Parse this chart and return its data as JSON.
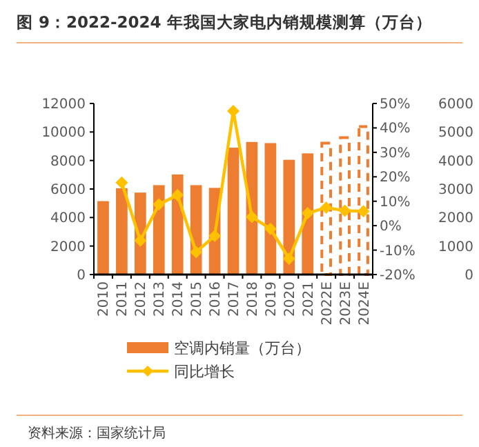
{
  "chart_data": {
    "type": "bar",
    "title": "图 9：2022-2024 年我国大家电内销规模测算（万台）",
    "categories": [
      "2010",
      "2011",
      "2012",
      "2013",
      "2014",
      "2015",
      "2016",
      "2017",
      "2018",
      "2019",
      "2020",
      "2021",
      "2022E",
      "2023E",
      "2024E"
    ],
    "series": [
      {
        "name": "空调内销量（万台）",
        "color": "#ed7d31",
        "values": [
          5150,
          6050,
          5750,
          6270,
          7020,
          6270,
          6080,
          8900,
          9300,
          9220,
          8050,
          8500,
          null,
          null,
          null
        ]
      },
      {
        "color": "#ed7d31",
        "line_style": "dashed",
        "values": [
          null,
          null,
          null,
          null,
          null,
          null,
          null,
          null,
          null,
          null,
          null,
          null,
          9220,
          9600,
          10380
        ]
      },
      {
        "name": "同比增长",
        "type": "line",
        "axis": "y2",
        "color": "#ffc000",
        "marker": "diamond",
        "values": [
          null,
          17.6,
          -6.1,
          8.7,
          12.5,
          -10.8,
          -4.2,
          46.9,
          3.6,
          -1.3,
          -13.5,
          5.1,
          7.4,
          6.1,
          5.9
        ]
      }
    ],
    "ylim": [
      0,
      12000
    ],
    "yticks": [
      0,
      2000,
      4000,
      6000,
      8000,
      10000,
      12000
    ],
    "y2lim": [
      -20,
      50
    ],
    "y2ticks": [
      {
        "value": -20,
        "label": "-20%"
      },
      {
        "value": -10,
        "label": "-10%"
      },
      {
        "value": 0,
        "label": "0%"
      },
      {
        "value": 10,
        "label": "10%"
      },
      {
        "value": 20,
        "label": "20%"
      },
      {
        "value": 30,
        "label": "30%"
      },
      {
        "value": 40,
        "label": "40%"
      },
      {
        "value": 50,
        "label": "50%"
      }
    ],
    "y3lim": [
      0,
      6000
    ],
    "y3ticks": [
      0,
      1000,
      2000,
      3000,
      4000,
      5000,
      6000
    ],
    "legend": "bottom",
    "annotations": [
      "资料来源：国家统计局"
    ]
  }
}
